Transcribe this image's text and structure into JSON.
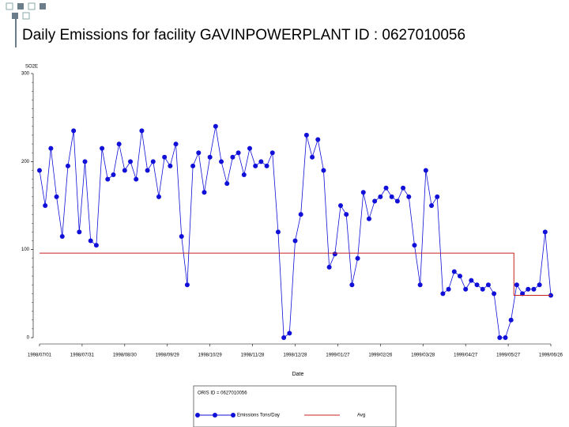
{
  "chart_data": {
    "type": "line",
    "title": "Daily Emissions for facility GAVINPOWERPLANT  ID : 0627010056",
    "y_label": "SO2E",
    "x_label": "Date",
    "legend_title": "ORIS ID = 0627010056",
    "xlim": [
      "1998-07-01",
      "1999-06-26"
    ],
    "xticks": [
      {
        "value": "1998-07-01",
        "label": "1998/07/01"
      },
      {
        "value": "1998-07-31",
        "label": "1998/07/31"
      },
      {
        "value": "1998-08-30",
        "label": "1998/08/30"
      },
      {
        "value": "1998-09-29",
        "label": "1998/09/29"
      },
      {
        "value": "1998-10-29",
        "label": "1998/10/29"
      },
      {
        "value": "1998-11-28",
        "label": "1998/11/28"
      },
      {
        "value": "1998-12-28",
        "label": "1998/12/28"
      },
      {
        "value": "1999-01-27",
        "label": "1999/01/27"
      },
      {
        "value": "1999-02-26",
        "label": "1999/02/26"
      },
      {
        "value": "1999-03-28",
        "label": "1999/03/28"
      },
      {
        "value": "1999-04-27",
        "label": "1999/04/27"
      },
      {
        "value": "1999-05-27",
        "label": "1999/05/27"
      },
      {
        "value": "1999-06-26",
        "label": "1999/06/26"
      }
    ],
    "ylim": [
      0,
      300
    ],
    "yticks": [
      0,
      100,
      200,
      300
    ],
    "series": [
      {
        "name": "Emissions Tons/Day",
        "color": "#1010d8",
        "markers": true,
        "x": [
          "1998-07-01",
          "1998-07-05",
          "1998-07-09",
          "1998-07-13",
          "1998-07-17",
          "1998-07-21",
          "1998-07-25",
          "1998-07-29",
          "1998-08-02",
          "1998-08-06",
          "1998-08-10",
          "1998-08-14",
          "1998-08-18",
          "1998-08-22",
          "1998-08-26",
          "1998-08-30",
          "1998-09-03",
          "1998-09-07",
          "1998-09-11",
          "1998-09-15",
          "1998-09-19",
          "1998-09-23",
          "1998-09-27",
          "1998-10-01",
          "1998-10-05",
          "1998-10-09",
          "1998-10-13",
          "1998-10-17",
          "1998-10-21",
          "1998-10-25",
          "1998-10-29",
          "1998-11-02",
          "1998-11-06",
          "1998-11-10",
          "1998-11-14",
          "1998-11-18",
          "1998-11-22",
          "1998-11-26",
          "1998-11-30",
          "1998-12-04",
          "1998-12-08",
          "1998-12-12",
          "1998-12-16",
          "1998-12-20",
          "1998-12-24",
          "1998-12-28",
          "1999-01-01",
          "1999-01-05",
          "1999-01-09",
          "1999-01-13",
          "1999-01-17",
          "1999-01-21",
          "1999-01-25",
          "1999-01-29",
          "1999-02-02",
          "1999-02-06",
          "1999-02-10",
          "1999-02-14",
          "1999-02-18",
          "1999-02-22",
          "1999-02-26",
          "1999-03-02",
          "1999-03-06",
          "1999-03-10",
          "1999-03-14",
          "1999-03-18",
          "1999-03-22",
          "1999-03-26",
          "1999-03-30",
          "1999-04-03",
          "1999-04-07",
          "1999-04-11",
          "1999-04-15",
          "1999-04-19",
          "1999-04-23",
          "1999-04-27",
          "1999-05-01",
          "1999-05-05",
          "1999-05-09",
          "1999-05-13",
          "1999-05-17",
          "1999-05-21",
          "1999-05-25",
          "1999-05-29",
          "1999-06-02",
          "1999-06-06",
          "1999-06-10",
          "1999-06-14",
          "1999-06-18",
          "1999-06-22",
          "1999-06-26"
        ],
        "values": [
          190,
          150,
          215,
          160,
          115,
          195,
          235,
          120,
          200,
          110,
          105,
          215,
          180,
          185,
          220,
          190,
          200,
          180,
          235,
          190,
          200,
          160,
          205,
          195,
          220,
          115,
          60,
          195,
          210,
          165,
          205,
          240,
          200,
          175,
          205,
          210,
          185,
          215,
          195,
          200,
          195,
          210,
          120,
          0,
          5,
          110,
          140,
          230,
          205,
          225,
          190,
          80,
          95,
          150,
          140,
          60,
          90,
          165,
          135,
          155,
          160,
          170,
          160,
          155,
          170,
          160,
          105,
          60,
          190,
          150,
          160,
          50,
          55,
          75,
          70,
          55,
          65,
          60,
          55,
          60,
          50,
          0,
          0,
          20,
          60,
          50,
          55,
          55,
          60,
          120,
          48
        ]
      },
      {
        "name": "Avg",
        "color": "#c82020",
        "markers": false,
        "x": [
          "1998-07-01",
          "1999-05-31",
          "1999-05-31",
          "1999-06-26"
        ],
        "values": [
          96,
          96,
          48,
          48
        ]
      }
    ]
  }
}
